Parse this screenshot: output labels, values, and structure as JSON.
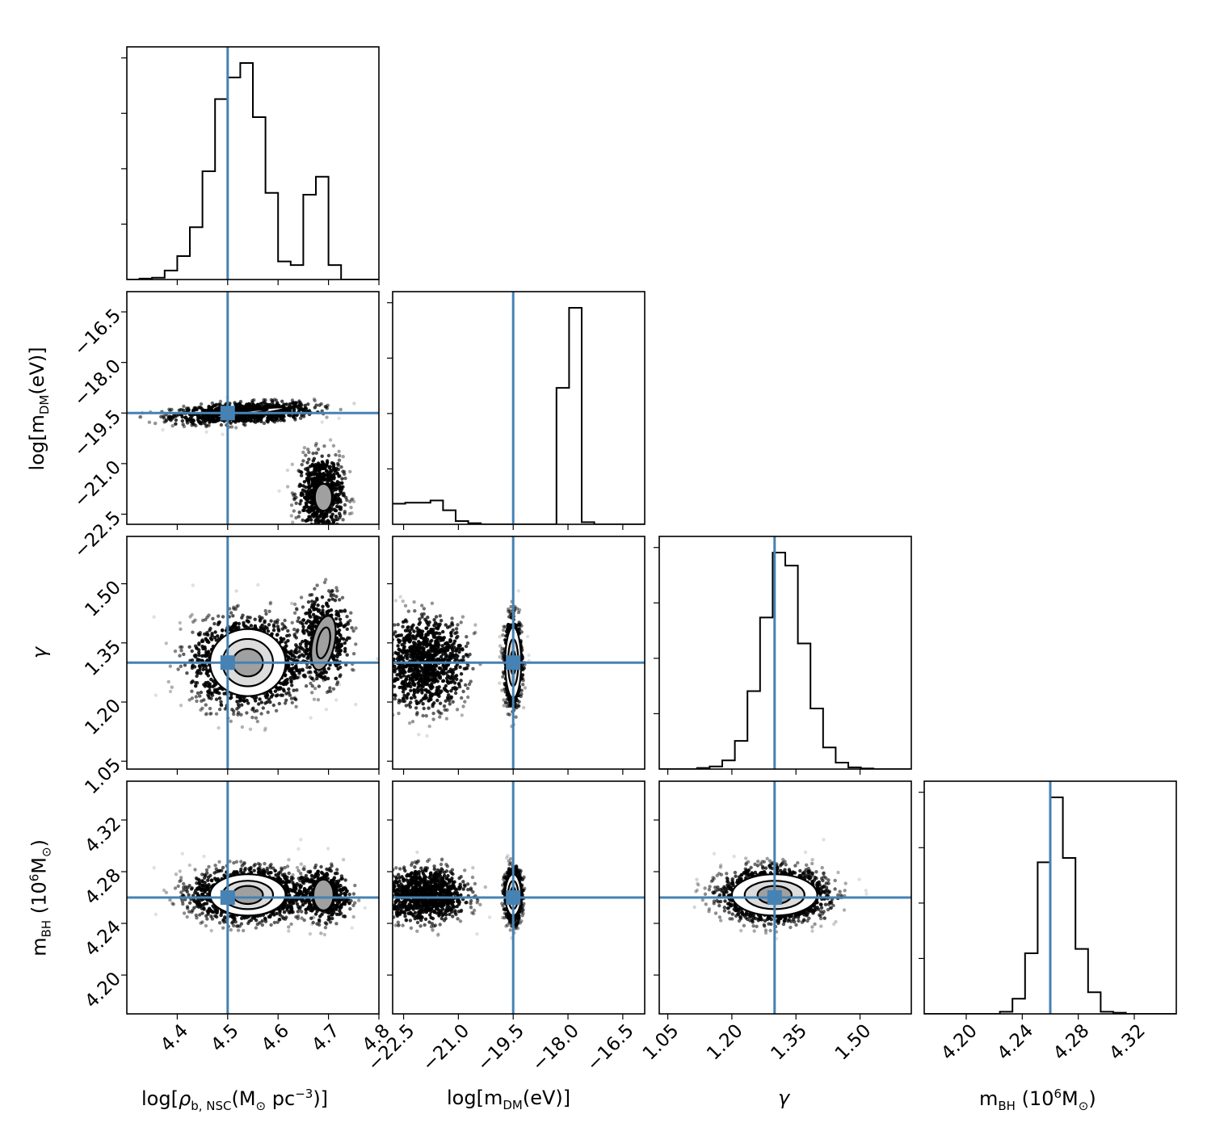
{
  "chart_data": {
    "type": "corner",
    "parameters": [
      {
        "key": "log_rho",
        "tick_labels": [
          "4.4",
          "4.5",
          "4.6",
          "4.7",
          "4.8"
        ],
        "ticks": [
          4.4,
          4.5,
          4.6,
          4.7,
          4.8
        ],
        "range": [
          4.3,
          4.8
        ],
        "truth": 4.5,
        "label": {
          "pre": "log[",
          "sym": "ρ",
          "sub": "b, NSC",
          "mid": "(M",
          "sub2": "⊙",
          "mid2": " pc",
          "sup": "−3",
          "post": ")]"
        }
      },
      {
        "key": "log_mdm",
        "tick_labels": [
          "−22.5",
          "−21.0",
          "−19.5",
          "−18.0",
          "−16.5"
        ],
        "ticks": [
          -22.5,
          -21.0,
          -19.5,
          -18.0,
          -16.5
        ],
        "range": [
          -22.8,
          -15.9
        ],
        "truth": -19.5,
        "label": {
          "pre": "log[m",
          "sub": "DM",
          "post": "(eV)]"
        }
      },
      {
        "key": "gamma",
        "tick_labels": [
          "1.05",
          "1.20",
          "1.35",
          "1.50"
        ],
        "ticks": [
          1.05,
          1.2,
          1.35,
          1.5
        ],
        "range": [
          1.03,
          1.62
        ],
        "truth": 1.3,
        "label": {
          "sym": "γ"
        }
      },
      {
        "key": "m_bh",
        "tick_labels": [
          "4.20",
          "4.24",
          "4.28",
          "4.32"
        ],
        "ticks": [
          4.2,
          4.24,
          4.28,
          4.32
        ],
        "range": [
          4.17,
          4.35
        ],
        "truth": 4.26,
        "label": {
          "pre": "m",
          "sub": "BH",
          "mid": " (10",
          "sup": "6",
          "mid2": "M",
          "sub2": "⊙",
          "post": ")"
        }
      }
    ],
    "histograms": {
      "log_rho": {
        "edges_start": 4.3,
        "bin_width": 0.025,
        "counts": [
          0,
          0.005,
          0.01,
          0.05,
          0.13,
          0.29,
          0.6,
          1.0,
          1.12,
          1.2,
          0.9,
          0.48,
          0.1,
          0.08,
          0.47,
          0.57,
          0.08,
          0,
          0,
          0
        ]
      },
      "log_mdm": {
        "edges_start": -22.8,
        "bin_width": 0.345,
        "counts": [
          0.095,
          0.1,
          0.1,
          0.11,
          0.065,
          0.015,
          0.005,
          0,
          0,
          0,
          0,
          0,
          0,
          0.63,
          1.0,
          0.01,
          0,
          0,
          0,
          0
        ]
      },
      "gamma": {
        "edges_start": 1.03,
        "bin_width": 0.0295,
        "counts": [
          0,
          0,
          0,
          0.005,
          0.012,
          0.04,
          0.13,
          0.36,
          0.7,
          1.0,
          0.94,
          0.58,
          0.28,
          0.1,
          0.03,
          0.008,
          0.003,
          0,
          0,
          0
        ]
      },
      "m_bh": {
        "edges_start": 4.17,
        "bin_width": 0.009,
        "counts": [
          0,
          0,
          0,
          0,
          0,
          0,
          0.01,
          0.07,
          0.28,
          0.7,
          1.0,
          0.72,
          0.3,
          0.1,
          0.01,
          0.005,
          0,
          0,
          0,
          0
        ]
      }
    },
    "truth_color": "#4682b4",
    "contour_levels": "2D density contours with scattered samples"
  }
}
